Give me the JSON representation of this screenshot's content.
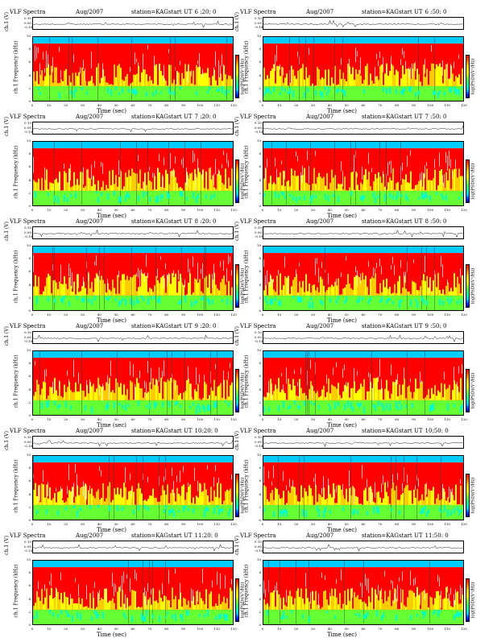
{
  "header": {
    "title": "VLF Spectra",
    "date": "Aug/2007",
    "station": "station=KAG",
    "start_label": "start UT"
  },
  "labels": {
    "waveform_axis": "ch.1 (V)",
    "freq_axis": "Frequency (kHz)",
    "freq_prefix": "ch.1",
    "time_axis": "Time (sec)",
    "colorbar": "log(PSD)(V²/Hz)"
  },
  "waveform_ticks": [
    "0.10",
    "0.00",
    "-0.10"
  ],
  "panels": [
    {
      "start_ut": "6 :20: 0"
    },
    {
      "start_ut": "6 :50: 0"
    },
    {
      "start_ut": "7 :20: 0"
    },
    {
      "start_ut": "7 :50: 0"
    },
    {
      "start_ut": "8 :20: 0"
    },
    {
      "start_ut": "8 :50: 0"
    },
    {
      "start_ut": "9 :20: 0"
    },
    {
      "start_ut": "9 :50: 0"
    },
    {
      "start_ut": "10:20: 0"
    },
    {
      "start_ut": "10:50: 0"
    },
    {
      "start_ut": "11:20: 0"
    },
    {
      "start_ut": "11:50: 0"
    }
  ],
  "colors": {
    "high": "#ff0000",
    "mid_high": "#ffcc00",
    "mid": "#ffff00",
    "mid_low": "#66ff33",
    "low": "#00ccff",
    "lowest": "#000099"
  },
  "chart_data": {
    "type": "heatmap",
    "title": "VLF Spectra",
    "xlabel": "Time (sec)",
    "ylabel": "ch.1 Frequency (kHz)",
    "xlim": [
      0,
      120
    ],
    "ylim": [
      0,
      10
    ],
    "x_ticks": [
      0,
      10,
      20,
      30,
      40,
      50,
      60,
      70,
      80,
      90,
      100,
      110,
      120
    ],
    "y_ticks": [
      0,
      2,
      4,
      6,
      8,
      10
    ],
    "colorbar_label": "log(PSD)(V²/Hz)",
    "waveform_ylim": [
      -0.1,
      0.1
    ],
    "bands": [
      {
        "freq_range_khz": [
          0,
          2.5
        ],
        "level": "low-mid (green/cyan)"
      },
      {
        "freq_range_khz": [
          2.5,
          9.0
        ],
        "level": "high (red/yellow)"
      },
      {
        "freq_range_khz": [
          9.0,
          10
        ],
        "level": "low (cyan)"
      }
    ]
  }
}
